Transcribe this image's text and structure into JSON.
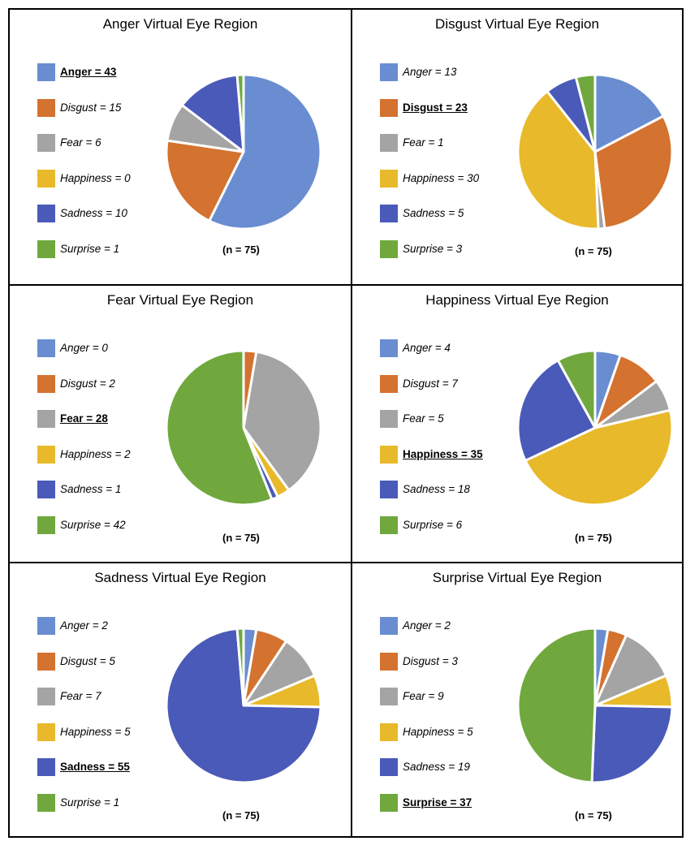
{
  "colors": {
    "Anger": "#6a8dd1",
    "Disgust": "#d4722f",
    "Fear": "#a4a4a4",
    "Happiness": "#e8b92a",
    "Sadness": "#4a5ab8",
    "Surprise": "#70a83e"
  },
  "chart_data": [
    {
      "type": "pie",
      "title": "Anger Virtual Eye Region",
      "n_label": "(n = 75)",
      "highlight": "Anger",
      "labels": [
        "Anger = 43",
        "Disgust = 15",
        "Fear = 6",
        "Happiness = 0",
        "Sadness = 10",
        "Surprise = 1"
      ],
      "categories": [
        "Anger",
        "Disgust",
        "Fear",
        "Happiness",
        "Sadness",
        "Surprise"
      ],
      "values": [
        43,
        15,
        6,
        0,
        10,
        1
      ]
    },
    {
      "type": "pie",
      "title": "Disgust Virtual Eye Region",
      "n_label": "(n = 75)",
      "highlight": "Disgust",
      "labels": [
        "Anger = 13",
        "Disgust = 23",
        "Fear = 1",
        "Happiness = 30",
        "Sadness = 5",
        "Surprise = 3"
      ],
      "categories": [
        "Anger",
        "Disgust",
        "Fear",
        "Happiness",
        "Sadness",
        "Surprise"
      ],
      "values": [
        13,
        23,
        1,
        30,
        5,
        3
      ]
    },
    {
      "type": "pie",
      "title": "Fear Virtual Eye Region",
      "n_label": "(n = 75)",
      "highlight": "Fear",
      "labels": [
        "Anger = 0",
        "Disgust = 2",
        "Fear = 28",
        "Happiness = 2",
        "Sadness = 1",
        "Surprise = 42"
      ],
      "categories": [
        "Anger",
        "Disgust",
        "Fear",
        "Happiness",
        "Sadness",
        "Surprise"
      ],
      "values": [
        0,
        2,
        28,
        2,
        1,
        42
      ]
    },
    {
      "type": "pie",
      "title": "Happiness Virtual Eye Region",
      "n_label": "(n = 75)",
      "highlight": "Happiness",
      "labels": [
        "Anger = 4",
        "Disgust = 7",
        "Fear = 5",
        "Happiness = 35",
        "Sadness = 18",
        "Surprise = 6"
      ],
      "categories": [
        "Anger",
        "Disgust",
        "Fear",
        "Happiness",
        "Sadness",
        "Surprise"
      ],
      "values": [
        4,
        7,
        5,
        35,
        18,
        6
      ]
    },
    {
      "type": "pie",
      "title": "Sadness Virtual Eye Region",
      "n_label": "(n = 75)",
      "highlight": "Sadness",
      "labels": [
        "Anger = 2",
        "Disgust = 5",
        "Fear = 7",
        "Happiness = 5",
        "Sadness = 55",
        "Surprise = 1"
      ],
      "categories": [
        "Anger",
        "Disgust",
        "Fear",
        "Happiness",
        "Sadness",
        "Surprise"
      ],
      "values": [
        2,
        5,
        7,
        5,
        55,
        1
      ]
    },
    {
      "type": "pie",
      "title": "Surprise Virtual Eye Region",
      "n_label": "(n = 75)",
      "highlight": "Surprise",
      "labels": [
        "Anger = 2",
        "Disgust = 3",
        "Fear = 9",
        "Happiness = 5",
        "Sadness = 19",
        "Surprise = 37"
      ],
      "categories": [
        "Anger",
        "Disgust",
        "Fear",
        "Happiness",
        "Sadness",
        "Surprise"
      ],
      "values": [
        2,
        3,
        9,
        5,
        19,
        37
      ]
    }
  ]
}
